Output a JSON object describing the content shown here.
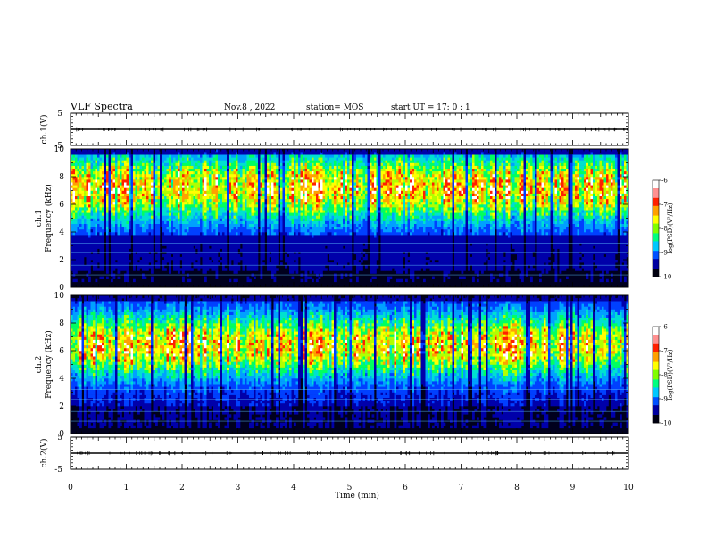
{
  "header": {
    "title": "VLF Spectra",
    "date": "Nov.8  , 2022",
    "station": "station= MOS",
    "start": "start  UT  =   17: 0   : 1"
  },
  "colormap": [
    "#00001e",
    "#0000aa",
    "#0040ff",
    "#00a0ff",
    "#00e0d0",
    "#00ff60",
    "#b0ff00",
    "#ffff00",
    "#ffa000",
    "#ff2000",
    "#ffffff"
  ],
  "chart_data": [
    {
      "type": "line",
      "panel": "ch1-waveform",
      "ylabel": "ch.1(V)",
      "ylim": [
        -5,
        5
      ],
      "yticks": [
        "5",
        "-5"
      ],
      "xlim": [
        0,
        10
      ],
      "baseline": 0
    },
    {
      "type": "heatmap",
      "panel": "ch1-spectrogram",
      "ylabel": "ch.1\nFrequency (kHz)",
      "ylabel_lines": [
        "ch.1",
        "Frequency (kHz)"
      ],
      "ylim": [
        0,
        10
      ],
      "yticks": [
        "0",
        "2",
        "4",
        "6",
        "8",
        "10"
      ],
      "xlim": [
        0,
        10
      ],
      "zlim": [
        -10,
        -6
      ],
      "colorbar_label": "log(PSD)(V²/Hz)",
      "colorbar_ticks": [
        "-6",
        "-7",
        "-8",
        "-9",
        "-10"
      ]
    },
    {
      "type": "heatmap",
      "panel": "ch2-spectrogram",
      "ylabel": "ch.2\nFrequency (kHz)",
      "ylabel_lines": [
        "ch.2",
        "Frequency (kHz)"
      ],
      "ylim": [
        0,
        10
      ],
      "yticks": [
        "0",
        "2",
        "4",
        "6",
        "8",
        "10"
      ],
      "xlim": [
        0,
        10
      ],
      "zlim": [
        -10,
        -6
      ],
      "colorbar_label": "log(PSD)(V²/Hz)",
      "colorbar_ticks": [
        "-6",
        "-7",
        "-8",
        "-9",
        "-10"
      ]
    },
    {
      "type": "line",
      "panel": "ch2-waveform",
      "ylabel": "ch.2(V)",
      "ylim": [
        -5,
        5
      ],
      "yticks": [
        "5",
        "-5"
      ],
      "xlim": [
        0,
        10
      ],
      "baseline": 0
    }
  ],
  "xaxis": {
    "label": "Time  (min)",
    "ticks": [
      "0",
      "1",
      "2",
      "3",
      "4",
      "5",
      "6",
      "7",
      "8",
      "9",
      "10"
    ]
  }
}
